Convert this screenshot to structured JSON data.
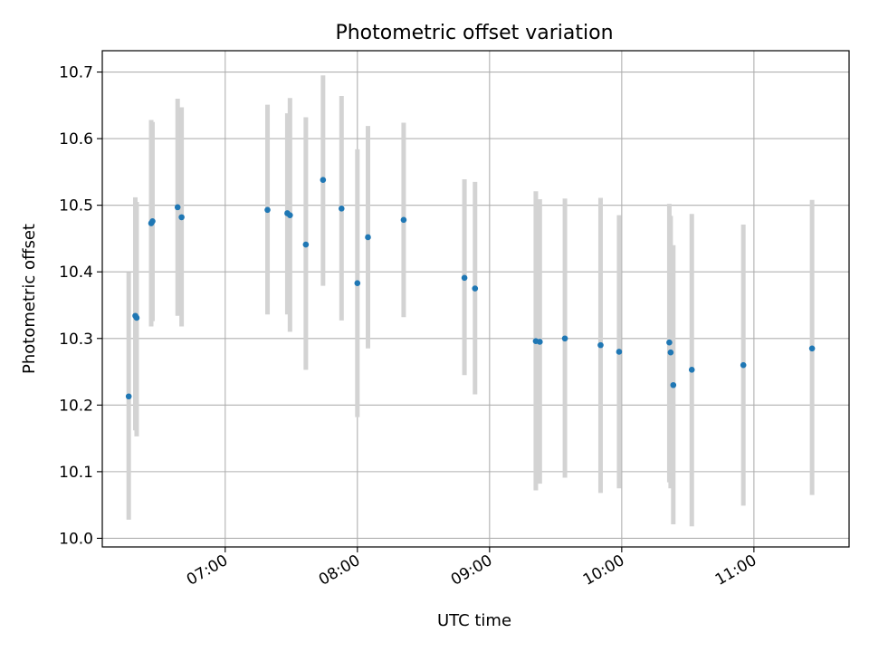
{
  "chart_data": {
    "type": "scatter",
    "title": "Photometric offset variation",
    "xlabel": "UTC time",
    "ylabel": "Photometric offset",
    "x_unit": "hours (UTC)",
    "xlim": [
      6.07,
      11.72
    ],
    "ylim": [
      9.987,
      10.732
    ],
    "x_ticks": [
      {
        "value": 7,
        "label": "07:00"
      },
      {
        "value": 8,
        "label": "08:00"
      },
      {
        "value": 9,
        "label": "09:00"
      },
      {
        "value": 10,
        "label": "10:00"
      },
      {
        "value": 11,
        "label": "11:00"
      }
    ],
    "y_ticks": [
      {
        "value": 10.0,
        "label": "10.0"
      },
      {
        "value": 10.1,
        "label": "10.1"
      },
      {
        "value": 10.2,
        "label": "10.2"
      },
      {
        "value": 10.3,
        "label": "10.3"
      },
      {
        "value": 10.4,
        "label": "10.4"
      },
      {
        "value": 10.5,
        "label": "10.5"
      },
      {
        "value": 10.6,
        "label": "10.6"
      },
      {
        "value": 10.7,
        "label": "10.7"
      }
    ],
    "grid": true,
    "colors": {
      "point": "#1f77b4",
      "errorbar": "#d3d3d3",
      "grid": "#b0b0b0"
    },
    "points": [
      {
        "x": 6.27,
        "y": 10.213,
        "ymin": 10.028,
        "ymax": 10.399
      },
      {
        "x": 6.32,
        "y": 10.334,
        "ymin": 10.162,
        "ymax": 10.512
      },
      {
        "x": 6.33,
        "y": 10.331,
        "ymin": 10.153,
        "ymax": 10.505
      },
      {
        "x": 6.44,
        "y": 10.473,
        "ymin": 10.318,
        "ymax": 10.628
      },
      {
        "x": 6.45,
        "y": 10.476,
        "ymin": 10.326,
        "ymax": 10.625
      },
      {
        "x": 6.64,
        "y": 10.497,
        "ymin": 10.334,
        "ymax": 10.66
      },
      {
        "x": 6.67,
        "y": 10.482,
        "ymin": 10.318,
        "ymax": 10.647
      },
      {
        "x": 7.32,
        "y": 10.493,
        "ymin": 10.336,
        "ymax": 10.651
      },
      {
        "x": 7.47,
        "y": 10.488,
        "ymin": 10.336,
        "ymax": 10.638
      },
      {
        "x": 7.49,
        "y": 10.485,
        "ymin": 10.31,
        "ymax": 10.661
      },
      {
        "x": 7.61,
        "y": 10.441,
        "ymin": 10.253,
        "ymax": 10.632
      },
      {
        "x": 7.74,
        "y": 10.538,
        "ymin": 10.379,
        "ymax": 10.695
      },
      {
        "x": 7.88,
        "y": 10.495,
        "ymin": 10.327,
        "ymax": 10.664
      },
      {
        "x": 8.0,
        "y": 10.383,
        "ymin": 10.182,
        "ymax": 10.584
      },
      {
        "x": 8.08,
        "y": 10.452,
        "ymin": 10.285,
        "ymax": 10.619
      },
      {
        "x": 8.35,
        "y": 10.478,
        "ymin": 10.332,
        "ymax": 10.624
      },
      {
        "x": 8.81,
        "y": 10.391,
        "ymin": 10.245,
        "ymax": 10.539
      },
      {
        "x": 8.89,
        "y": 10.375,
        "ymin": 10.216,
        "ymax": 10.535
      },
      {
        "x": 9.35,
        "y": 10.296,
        "ymin": 10.072,
        "ymax": 10.521
      },
      {
        "x": 9.38,
        "y": 10.295,
        "ymin": 10.082,
        "ymax": 10.509
      },
      {
        "x": 9.57,
        "y": 10.3,
        "ymin": 10.091,
        "ymax": 10.51
      },
      {
        "x": 9.84,
        "y": 10.29,
        "ymin": 10.068,
        "ymax": 10.511
      },
      {
        "x": 9.98,
        "y": 10.28,
        "ymin": 10.075,
        "ymax": 10.485
      },
      {
        "x": 10.36,
        "y": 10.294,
        "ymin": 10.084,
        "ymax": 10.502
      },
      {
        "x": 10.37,
        "y": 10.279,
        "ymin": 10.075,
        "ymax": 10.484
      },
      {
        "x": 10.39,
        "y": 10.23,
        "ymin": 10.021,
        "ymax": 10.44
      },
      {
        "x": 10.53,
        "y": 10.253,
        "ymin": 10.018,
        "ymax": 10.487
      },
      {
        "x": 10.92,
        "y": 10.26,
        "ymin": 10.049,
        "ymax": 10.471
      },
      {
        "x": 11.44,
        "y": 10.285,
        "ymin": 10.065,
        "ymax": 10.508
      }
    ]
  }
}
